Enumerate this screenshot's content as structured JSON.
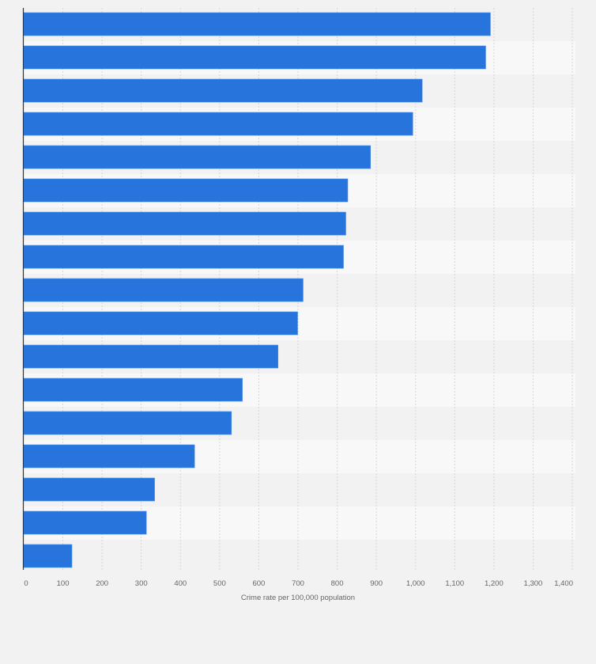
{
  "chart_data": {
    "type": "bar",
    "orientation": "horizontal",
    "title": "",
    "xlabel": "Crime rate per 100,000 population",
    "ylabel": "",
    "categories": [
      "",
      "",
      "",
      "",
      "",
      "",
      "",
      "",
      "",
      "",
      "",
      "",
      "",
      "",
      "",
      "",
      ""
    ],
    "values": [
      1191,
      1179,
      1017,
      993,
      885,
      827,
      822,
      816,
      713,
      699,
      649,
      558,
      530,
      436,
      334,
      313,
      123
    ],
    "xlim": [
      0,
      1400
    ],
    "xticks": [
      0,
      100,
      200,
      300,
      400,
      500,
      600,
      700,
      800,
      900,
      1000,
      1100,
      1200,
      1300,
      1400
    ],
    "xtick_labels": [
      "0",
      "100",
      "200",
      "300",
      "400",
      "500",
      "600",
      "700",
      "800",
      "900",
      "1,000",
      "1,100",
      "1,200",
      "1,300",
      "1,400"
    ],
    "grid": true,
    "legend": "none",
    "colors": {
      "bar": "#2775dc",
      "background": "#f2f2f2",
      "band_light": "#f8f8f8",
      "band_dark": "#f2f2f2",
      "grid": "#d6d6d6",
      "axis": "#333333"
    }
  }
}
